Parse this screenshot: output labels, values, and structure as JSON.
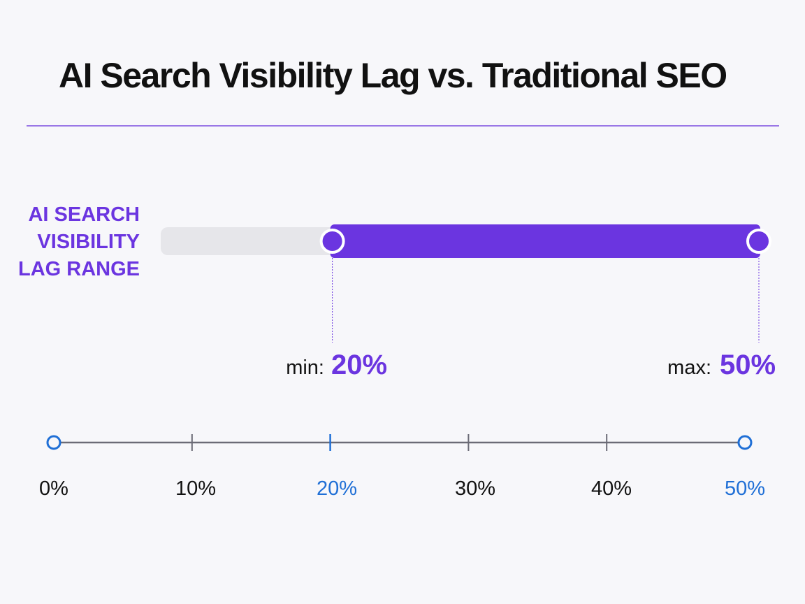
{
  "title": "AI Search Visibility Lag vs. Traditional SEO",
  "colors": {
    "accent": "#6b35e0",
    "track": "#e6e6ea",
    "axis": "#6b6b76",
    "highlight": "#1f6fd6",
    "text": "#111111"
  },
  "range_labels": {
    "min_prefix": "min:",
    "min_value": "20%",
    "max_prefix": "max:",
    "max_value": "50%"
  },
  "chart_data": {
    "type": "range",
    "title": "AI Search Visibility Lag vs. Traditional SEO",
    "series": [
      {
        "name": "AI SEARCH VISIBILITY LAG RANGE",
        "name_lines": [
          "AI SEARCH",
          "VISIBILITY",
          "LAG RANGE"
        ],
        "min": 20,
        "max": 50
      }
    ],
    "x": [
      0,
      10,
      20,
      30,
      40,
      50
    ],
    "tick_labels": [
      "0%",
      "10%",
      "20%",
      "30%",
      "40%",
      "50%"
    ],
    "highlighted_ticks": [
      "0%",
      "20%",
      "50%"
    ],
    "xlim": [
      0,
      50
    ],
    "unit": "%",
    "grid": false
  }
}
